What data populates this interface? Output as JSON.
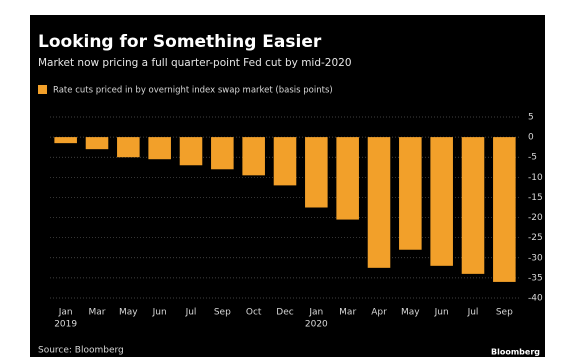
{
  "chart_data": {
    "type": "bar",
    "title": "Looking for Something Easier",
    "subtitle": "Market now pricing a full quarter-point Fed cut by mid-2020",
    "legend": "Rate cuts priced in by overnight index swap market (basis points)",
    "source": "Source: Bloomberg",
    "brand": "Bloomberg",
    "categories": [
      "Jan",
      "Mar",
      "May",
      "Jun",
      "Jul",
      "Sep",
      "Oct",
      "Dec",
      "Jan",
      "Mar",
      "Apr",
      "May",
      "Jun",
      "Jul",
      "Sep"
    ],
    "years": [
      "2019",
      null,
      null,
      null,
      null,
      null,
      null,
      null,
      "2020",
      null,
      null,
      null,
      null,
      null,
      null
    ],
    "values": [
      -1.5,
      -3,
      -5,
      -5.5,
      -7,
      -8,
      -9.5,
      -12,
      -17.5,
      -20.5,
      -32.5,
      -28,
      -32,
      -34,
      -36
    ],
    "color": "#f2a02a",
    "ylim": [
      -40,
      5
    ],
    "yticks": [
      5,
      0,
      -5,
      -10,
      -15,
      -20,
      -25,
      -30,
      -35,
      -40
    ],
    "grid": true
  }
}
